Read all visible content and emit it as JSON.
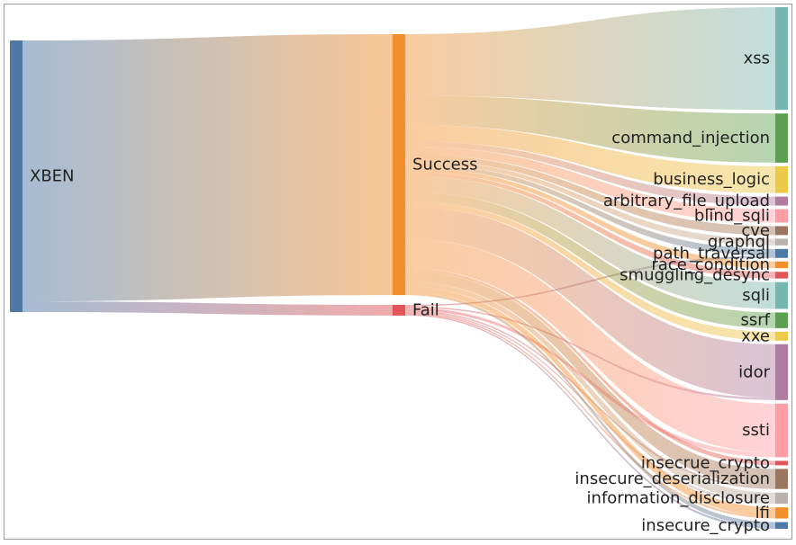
{
  "chart_data": {
    "type": "sankey",
    "title": "",
    "source": {
      "name": "XBEN",
      "color": "#4E79A7"
    },
    "stages": [
      {
        "name": "Success",
        "color": "#F28E2B"
      },
      {
        "name": "Fail",
        "color": "#E15759"
      }
    ],
    "categories": [
      {
        "name": "xss",
        "color": "#76B7B2",
        "success": 23.0,
        "fail": 0
      },
      {
        "name": "command_injection",
        "color": "#59A14F",
        "success": 11.0,
        "fail": 0
      },
      {
        "name": "business_logic",
        "color": "#EDC948",
        "success": 6.0,
        "fail": 0
      },
      {
        "name": "arbitrary_file_upload",
        "color": "#B07AA1",
        "success": 2.0,
        "fail": 0
      },
      {
        "name": "blind_sqli",
        "color": "#FF9DA7",
        "success": 3.0,
        "fail": 0
      },
      {
        "name": "cve",
        "color": "#9C755F",
        "success": 2.0,
        "fail": 0
      },
      {
        "name": "graphql",
        "color": "#BAB0AC",
        "success": 1.5,
        "fail": 0
      },
      {
        "name": "path_traversal",
        "color": "#4E79A7",
        "success": 1.5,
        "fail": 0.5
      },
      {
        "name": "race_condition",
        "color": "#F28E2B",
        "success": 1.5,
        "fail": 0
      },
      {
        "name": "smuggling_desync",
        "color": "#E15759",
        "success": 1.5,
        "fail": 0
      },
      {
        "name": "sqli",
        "color": "#76B7B2",
        "success": 6.0,
        "fail": 0
      },
      {
        "name": "ssrf",
        "color": "#59A14F",
        "success": 3.5,
        "fail": 0
      },
      {
        "name": "xxe",
        "color": "#EDC948",
        "success": 2.0,
        "fail": 0
      },
      {
        "name": "idor",
        "color": "#B07AA1",
        "success": 12.0,
        "fail": 0.5
      },
      {
        "name": "ssti",
        "color": "#FF9DA7",
        "success": 11.0,
        "fail": 1.0
      },
      {
        "name": "insecrue_crypto",
        "color": "#E15759",
        "success": 1.0,
        "fail": 0
      },
      {
        "name": "insecure_deserialization",
        "color": "#9C755F",
        "success": 4.0,
        "fail": 0.5
      },
      {
        "name": "information_disclosure",
        "color": "#BAB0AC",
        "success": 2.0,
        "fail": 0.5
      },
      {
        "name": "lfi",
        "color": "#F28E2B",
        "success": 2.0,
        "fail": 0.5
      },
      {
        "name": "insecure_crypto",
        "color": "#4E79A7",
        "success": 1.0,
        "fail": 0.5
      }
    ]
  }
}
